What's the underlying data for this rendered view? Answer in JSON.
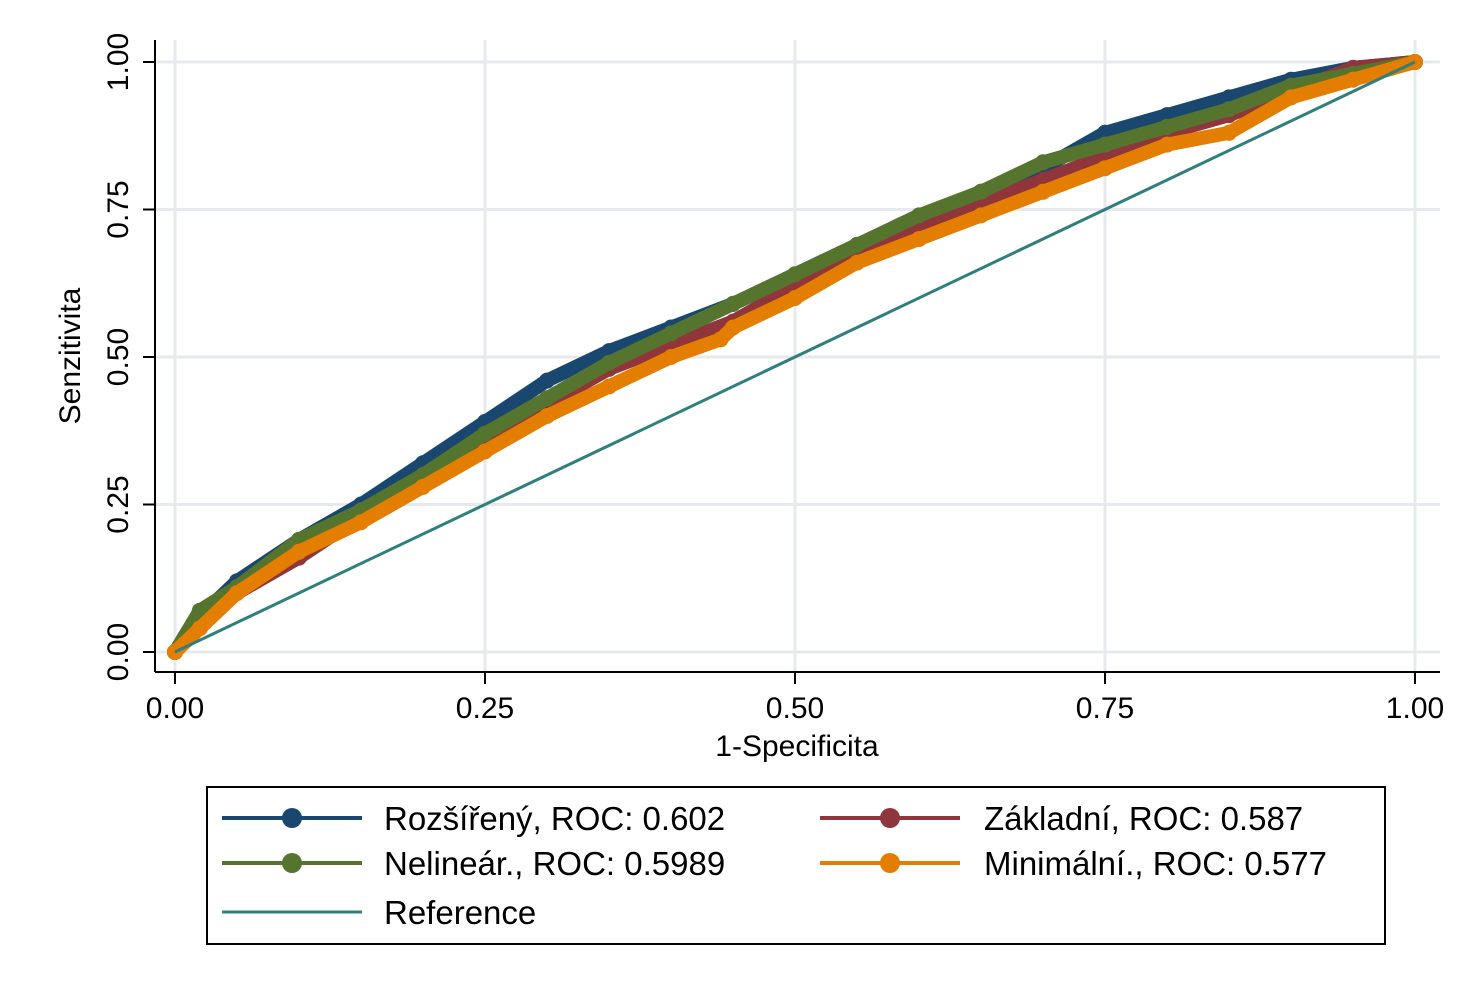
{
  "chart_data": {
    "type": "line",
    "title": "",
    "xlabel": "1-Specificita",
    "ylabel": "Senzitivita",
    "xlim": [
      0,
      1
    ],
    "ylim": [
      0,
      1
    ],
    "x_ticks": [
      "0.00",
      "0.25",
      "0.50",
      "0.75",
      "1.00"
    ],
    "y_ticks": [
      "0.00",
      "0.25",
      "0.50",
      "0.75",
      "1.00"
    ],
    "grid": true,
    "legend_position": "bottom",
    "series": [
      {
        "name": "Rozšířený, ROC: 0.602",
        "color": "#1a476f",
        "marker": "circle",
        "x": [
          0,
          0.02,
          0.05,
          0.1,
          0.15,
          0.2,
          0.25,
          0.3,
          0.35,
          0.4,
          0.45,
          0.5,
          0.55,
          0.6,
          0.65,
          0.7,
          0.75,
          0.8,
          0.85,
          0.9,
          0.95,
          1.0
        ],
        "y": [
          0,
          0.06,
          0.12,
          0.19,
          0.25,
          0.32,
          0.39,
          0.46,
          0.51,
          0.55,
          0.59,
          0.64,
          0.69,
          0.73,
          0.78,
          0.82,
          0.88,
          0.91,
          0.94,
          0.97,
          0.99,
          1.0
        ]
      },
      {
        "name": "Základní, ROC: 0.587",
        "color": "#90353b",
        "marker": "circle",
        "x": [
          0,
          0.02,
          0.05,
          0.1,
          0.15,
          0.2,
          0.25,
          0.3,
          0.35,
          0.4,
          0.45,
          0.5,
          0.55,
          0.6,
          0.65,
          0.7,
          0.75,
          0.8,
          0.85,
          0.9,
          0.95,
          1.0
        ],
        "y": [
          0,
          0.05,
          0.1,
          0.16,
          0.23,
          0.3,
          0.36,
          0.42,
          0.48,
          0.52,
          0.56,
          0.62,
          0.68,
          0.72,
          0.76,
          0.8,
          0.84,
          0.88,
          0.91,
          0.95,
          0.99,
          1.0
        ]
      },
      {
        "name": "Nelineár., ROC: 0.5989",
        "color": "#55752f",
        "marker": "circle",
        "x": [
          0,
          0.02,
          0.05,
          0.1,
          0.15,
          0.2,
          0.25,
          0.3,
          0.35,
          0.4,
          0.45,
          0.5,
          0.55,
          0.6,
          0.65,
          0.7,
          0.75,
          0.8,
          0.85,
          0.9,
          0.95,
          1.0
        ],
        "y": [
          0,
          0.07,
          0.11,
          0.19,
          0.24,
          0.3,
          0.37,
          0.43,
          0.49,
          0.54,
          0.59,
          0.64,
          0.69,
          0.74,
          0.78,
          0.83,
          0.86,
          0.89,
          0.92,
          0.96,
          0.98,
          1.0
        ]
      },
      {
        "name": "Minimální., ROC: 0.577",
        "color": "#e37e00",
        "marker": "circle",
        "x": [
          0,
          0.02,
          0.05,
          0.1,
          0.15,
          0.2,
          0.25,
          0.3,
          0.35,
          0.4,
          0.44,
          0.45,
          0.5,
          0.55,
          0.6,
          0.65,
          0.7,
          0.75,
          0.8,
          0.85,
          0.9,
          0.95,
          1.0
        ],
        "y": [
          0,
          0.04,
          0.1,
          0.17,
          0.22,
          0.28,
          0.34,
          0.4,
          0.45,
          0.5,
          0.53,
          0.55,
          0.6,
          0.66,
          0.7,
          0.74,
          0.78,
          0.82,
          0.86,
          0.88,
          0.94,
          0.97,
          1.0
        ]
      },
      {
        "name": "Reference",
        "color": "#2f7f7f",
        "marker": "none",
        "x": [
          0,
          1
        ],
        "y": [
          0,
          1
        ]
      }
    ]
  }
}
